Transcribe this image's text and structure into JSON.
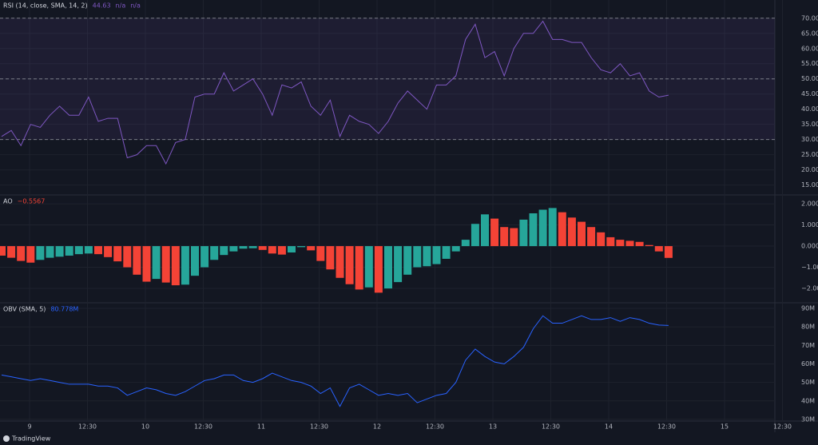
{
  "chart_data": [
    {
      "type": "line",
      "legend": "RSI (14, close, SMA, 14, 2)",
      "legend_values": [
        "44.63",
        "n/a",
        "n/a"
      ],
      "color": "#7e57c2",
      "values": [
        31,
        33,
        28,
        35,
        34,
        38,
        41,
        38,
        38,
        44,
        36,
        37,
        37,
        24,
        25,
        28,
        28,
        22,
        29,
        30,
        44,
        45,
        45,
        52,
        46,
        48,
        50,
        45,
        38,
        48,
        47,
        49,
        41,
        38,
        43,
        31,
        38,
        36,
        35,
        32,
        36,
        42,
        46,
        43,
        40,
        48,
        48,
        51,
        63,
        68,
        57,
        59,
        51,
        60,
        65,
        65,
        69,
        63,
        63,
        62,
        62,
        57,
        53,
        52,
        55,
        51,
        52,
        46,
        44,
        44.63
      ],
      "ylim": [
        12,
        76
      ],
      "yticks": [
        {
          "value": 70,
          "label": "70.00"
        },
        {
          "value": 65,
          "label": "65.00"
        },
        {
          "value": 60,
          "label": "60.00"
        },
        {
          "value": 55,
          "label": "55.00"
        },
        {
          "value": 50,
          "label": "50.00"
        },
        {
          "value": 45,
          "label": "45.00"
        },
        {
          "value": 40,
          "label": "40.00"
        },
        {
          "value": 35,
          "label": "35.00"
        },
        {
          "value": 30,
          "label": "30.00"
        },
        {
          "value": 25,
          "label": "25.00"
        },
        {
          "value": 20,
          "label": "20.00"
        },
        {
          "value": 15,
          "label": "15.00"
        }
      ],
      "band": [
        30,
        70
      ],
      "hlines": [
        70,
        50,
        30
      ],
      "grid": true
    },
    {
      "type": "bar",
      "legend": "AO",
      "legend_values": [
        "−0.5567"
      ],
      "up_color": "#26a69a",
      "down_color": "#f44336",
      "values": [
        -0.45,
        -0.55,
        -0.7,
        -0.78,
        -0.65,
        -0.55,
        -0.5,
        -0.45,
        -0.38,
        -0.35,
        -0.38,
        -0.52,
        -0.72,
        -1.0,
        -1.35,
        -1.68,
        -1.55,
        -1.72,
        -1.85,
        -1.82,
        -1.4,
        -1.0,
        -0.65,
        -0.42,
        -0.25,
        -0.12,
        -0.1,
        -0.18,
        -0.35,
        -0.4,
        -0.3,
        -0.05,
        -0.2,
        -0.7,
        -1.1,
        -1.5,
        -1.8,
        -2.05,
        -1.95,
        -2.2,
        -2.0,
        -1.7,
        -1.35,
        -1.0,
        -0.95,
        -0.85,
        -0.6,
        -0.25,
        0.3,
        1.05,
        1.5,
        1.3,
        0.9,
        0.85,
        1.25,
        1.55,
        1.72,
        1.8,
        1.6,
        1.35,
        1.15,
        0.9,
        0.65,
        0.42,
        0.3,
        0.25,
        0.2,
        0.05,
        -0.25,
        -0.5567
      ],
      "ylim": [
        -2.64,
        2.38
      ],
      "yticks": [
        {
          "value": 2,
          "label": "2.0000"
        },
        {
          "value": 1,
          "label": "1.0000"
        },
        {
          "value": 0,
          "label": "0.0000"
        },
        {
          "value": -1,
          "label": "−1.0000"
        },
        {
          "value": -2,
          "label": "−2.0000"
        }
      ],
      "grid": true
    },
    {
      "type": "line",
      "legend": "OBV (SMA, 5)",
      "legend_values": [
        "80.778M"
      ],
      "color": "#2962ff",
      "values": [
        54000000,
        53000000,
        52000000,
        51000000,
        52000000,
        51000000,
        50000000,
        49000000,
        49000000,
        49000000,
        48000000,
        48000000,
        47000000,
        43000000,
        45000000,
        47000000,
        46000000,
        44000000,
        43000000,
        45000000,
        48000000,
        51000000,
        52000000,
        54000000,
        54000000,
        51000000,
        50000000,
        52000000,
        55000000,
        53000000,
        51000000,
        50000000,
        48000000,
        44000000,
        47000000,
        37000000,
        47000000,
        49000000,
        46000000,
        43000000,
        44000000,
        43000000,
        44000000,
        39000000,
        41000000,
        43000000,
        44000000,
        50000000,
        62000000,
        68000000,
        64000000,
        61000000,
        60000000,
        64000000,
        69000000,
        79000000,
        86000000,
        82000000,
        82000000,
        84000000,
        86000000,
        84000000,
        84000000,
        85000000,
        83000000,
        85000000,
        84000000,
        82000000,
        81000000,
        80778000
      ],
      "ylim": [
        29100000,
        92600000
      ],
      "yticks": [
        {
          "value": 90000000,
          "label": "90M"
        },
        {
          "value": 80000000,
          "label": "80M"
        },
        {
          "value": 70000000,
          "label": "70M"
        },
        {
          "value": 60000000,
          "label": "60M"
        },
        {
          "value": 50000000,
          "label": "50M"
        },
        {
          "value": 40000000,
          "label": "40M"
        },
        {
          "value": 30000000,
          "label": "30M"
        }
      ],
      "grid": true
    }
  ],
  "time_axis": {
    "labels": [
      "9",
      "12:30",
      "10",
      "12:30",
      "11",
      "12:30",
      "12",
      "12:30",
      "13",
      "12:30",
      "14",
      "12:30",
      "15",
      "12:30"
    ]
  },
  "footer": {
    "brand": "TradingView"
  }
}
